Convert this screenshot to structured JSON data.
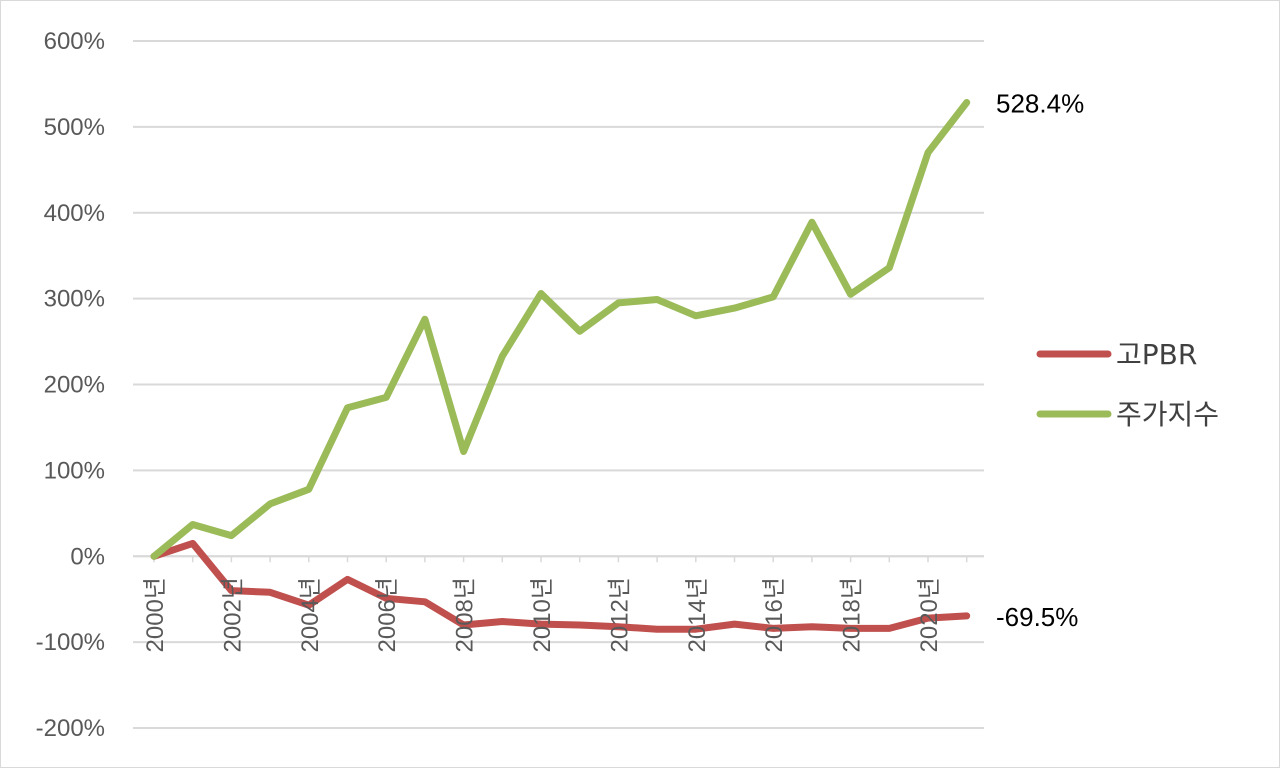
{
  "chart_data": {
    "type": "line",
    "title": "",
    "xlabel": "",
    "ylabel": "",
    "ylim": [
      -200,
      600
    ],
    "yticks": [
      600,
      500,
      400,
      300,
      200,
      100,
      0,
      -100,
      -200
    ],
    "ytick_labels": [
      "600%",
      "500%",
      "400%",
      "300%",
      "200%",
      "100%",
      "0%",
      "-100%",
      "-200%"
    ],
    "x": [
      "2000년",
      "2001년",
      "2002년",
      "2003년",
      "2004년",
      "2005년",
      "2006년",
      "2007년",
      "2008년",
      "2009년",
      "2010년",
      "2011년",
      "2012년",
      "2013년",
      "2014년",
      "2015년",
      "2016년",
      "2017년",
      "2018년",
      "2019년",
      "2020년",
      "2021년"
    ],
    "xtick_labels": [
      {
        "index": 0,
        "label": "2000년"
      },
      {
        "index": 2,
        "label": "2002년"
      },
      {
        "index": 4,
        "label": "2004년"
      },
      {
        "index": 6,
        "label": "2006년"
      },
      {
        "index": 8,
        "label": "2008년"
      },
      {
        "index": 10,
        "label": "2010년"
      },
      {
        "index": 12,
        "label": "2012년"
      },
      {
        "index": 14,
        "label": "2014년"
      },
      {
        "index": 16,
        "label": "2016년"
      },
      {
        "index": 18,
        "label": "2018년"
      },
      {
        "index": 20,
        "label": "2020년"
      }
    ],
    "grid": true,
    "legend_position": "right",
    "series": [
      {
        "name": "고PBR",
        "color": "#c0504d",
        "values": [
          0,
          15,
          -40,
          -42,
          -57,
          -27,
          -49,
          -53,
          -80,
          -76,
          -79,
          -80,
          -82,
          -85,
          -85,
          -79,
          -84,
          -82,
          -84,
          -84,
          -72,
          -69.5
        ],
        "end_label": "-69.5%"
      },
      {
        "name": "주가지수",
        "color": "#9bbb59",
        "values": [
          0,
          37,
          24,
          61,
          78,
          173,
          185,
          276,
          122,
          233,
          306,
          262,
          295,
          299,
          280,
          289,
          302,
          389,
          305,
          336,
          470,
          528.4
        ],
        "end_label": "528.4%"
      }
    ]
  }
}
